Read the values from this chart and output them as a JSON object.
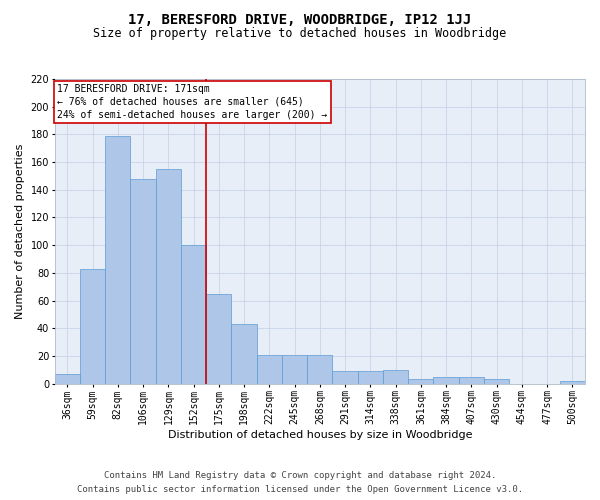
{
  "title": "17, BERESFORD DRIVE, WOODBRIDGE, IP12 1JJ",
  "subtitle": "Size of property relative to detached houses in Woodbridge",
  "xlabel": "Distribution of detached houses by size in Woodbridge",
  "ylabel": "Number of detached properties",
  "categories": [
    "36sqm",
    "59sqm",
    "82sqm",
    "106sqm",
    "129sqm",
    "152sqm",
    "175sqm",
    "198sqm",
    "222sqm",
    "245sqm",
    "268sqm",
    "291sqm",
    "314sqm",
    "338sqm",
    "361sqm",
    "384sqm",
    "407sqm",
    "430sqm",
    "454sqm",
    "477sqm",
    "500sqm"
  ],
  "values": [
    7,
    83,
    179,
    148,
    155,
    100,
    65,
    43,
    21,
    21,
    21,
    9,
    9,
    10,
    3,
    5,
    5,
    3,
    0,
    0,
    2
  ],
  "bar_color": "#aec6e8",
  "bar_edgecolor": "#5b9bd5",
  "redline_x": 5.5,
  "ylim": [
    0,
    220
  ],
  "yticks": [
    0,
    20,
    40,
    60,
    80,
    100,
    120,
    140,
    160,
    180,
    200,
    220
  ],
  "annotation_text": "17 BERESFORD DRIVE: 171sqm\n← 76% of detached houses are smaller (645)\n24% of semi-detached houses are larger (200) →",
  "annotation_box_color": "#ffffff",
  "annotation_box_edgecolor": "#cc0000",
  "footer_line1": "Contains HM Land Registry data © Crown copyright and database right 2024.",
  "footer_line2": "Contains public sector information licensed under the Open Government Licence v3.0.",
  "background_color": "#ffffff",
  "plot_bg_color": "#e8eef8",
  "grid_color": "#c8d4e8",
  "redline_color": "#cc0000",
  "title_fontsize": 10,
  "subtitle_fontsize": 8.5,
  "ylabel_fontsize": 8,
  "xlabel_fontsize": 8,
  "tick_fontsize": 7,
  "annot_fontsize": 7,
  "footer_fontsize": 6.5
}
